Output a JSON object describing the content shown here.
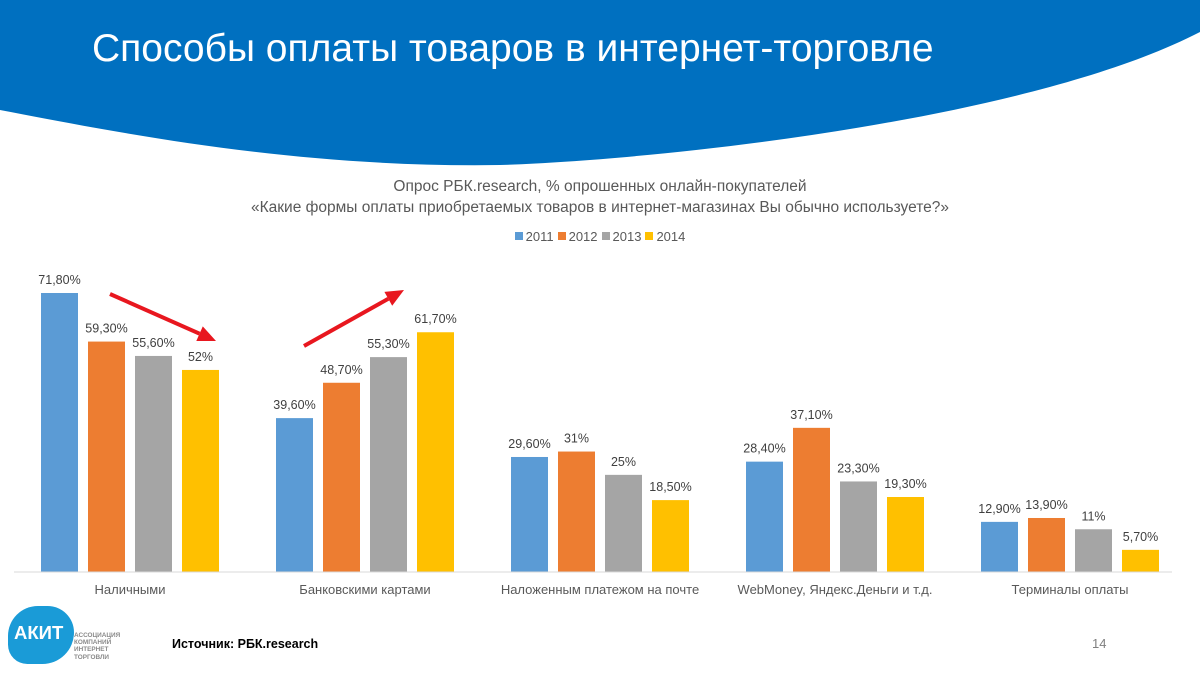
{
  "title": "Способы оплаты товаров в интернет-торговле",
  "subtitle_line1": "Опрос РБК.research, % опрошенных онлайн-покупателей",
  "subtitle_line2": "«Какие формы оплаты приобретаемых товаров в интернет-магазинах Вы обычно используете?»",
  "source": "Источник: РБК.research",
  "page_number": "14",
  "logo": {
    "mark": "АКИТ",
    "lines": [
      "АССОЦИАЦИЯ",
      "КОМПАНИЙ",
      "ИНТЕРНЕТ",
      "ТОРГОВЛИ"
    ]
  },
  "colors": {
    "header_blue": "#0070c0",
    "series": [
      "#5b9bd5",
      "#ed7d31",
      "#a5a5a5",
      "#ffc000"
    ],
    "arrow": "#e8171f"
  },
  "chart_data": {
    "type": "bar",
    "categories": [
      "Наличными",
      "Банковскими картами",
      "Наложенным платежом на почте",
      "WebMoney, Яндекс.Деньги и т.д.",
      "Терминалы оплаты"
    ],
    "series": [
      {
        "name": "2011",
        "values": [
          71.8,
          39.6,
          29.6,
          28.4,
          12.9
        ],
        "labels": [
          "71,80%",
          "39,60%",
          "29,60%",
          "28,40%",
          "12,90%"
        ]
      },
      {
        "name": "2012",
        "values": [
          59.3,
          48.7,
          31,
          37.1,
          13.9
        ],
        "labels": [
          "59,30%",
          "48,70%",
          "31%",
          "37,10%",
          "13,90%"
        ]
      },
      {
        "name": "2013",
        "values": [
          55.6,
          55.3,
          25,
          23.3,
          11
        ],
        "labels": [
          "55,60%",
          "55,30%",
          "25%",
          "23,30%",
          "11%"
        ]
      },
      {
        "name": "2014",
        "values": [
          52,
          61.7,
          18.5,
          19.3,
          5.7
        ],
        "labels": [
          "52%",
          "61,70%",
          "18,50%",
          "19,30%",
          "5,70%"
        ]
      }
    ],
    "ylim": [
      0,
      71.8
    ],
    "grid": false,
    "legend": "top-center",
    "annotations": [
      {
        "type": "arrow",
        "direction": "down",
        "category": "Наличными"
      },
      {
        "type": "arrow",
        "direction": "up",
        "category": "Банковскими картами"
      }
    ]
  }
}
